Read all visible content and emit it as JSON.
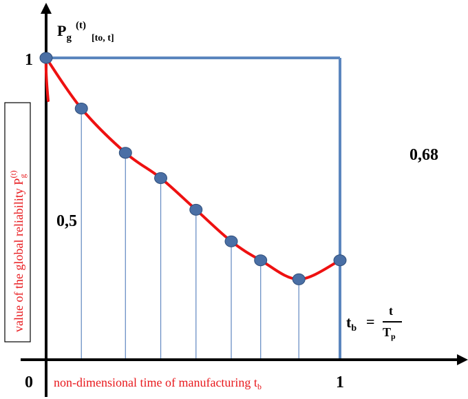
{
  "chart_data": {
    "type": "line",
    "series": [
      {
        "x": [
          0,
          0.12,
          0.27,
          0.39,
          0.51,
          0.63,
          0.73,
          0.86,
          1.0
        ],
        "values": [
          1.0,
          0.92,
          0.85,
          0.81,
          0.76,
          0.71,
          0.68,
          0.65,
          0.68
        ],
        "color": "#ee1111"
      }
    ],
    "markers_color": "#4a6fa5",
    "box_color": "#5b86be",
    "droplines_color": "#6a8fc4",
    "axis_color": "#000000",
    "xlim": [
      0,
      1
    ],
    "ylim": [
      0,
      1
    ],
    "x_ticks": [
      {
        "value": 0,
        "label": "0"
      },
      {
        "value": 1,
        "label": "1"
      }
    ],
    "y_ticks": [
      {
        "value": 1,
        "label": "1"
      },
      {
        "value": 0.5,
        "label": "0,5"
      }
    ],
    "title_main": "P",
    "title_sub": "g",
    "title_sup": "(t)",
    "title_interval": "[to, t]",
    "ylabel_text": "value of the global reliability P",
    "ylabel_sub": "g",
    "ylabel_sup": "(t)",
    "xlabel_text": "non-dimensional time of manufacturing t",
    "xlabel_sub": "b",
    "annotation_value": "0,68",
    "formula_lhs": "t",
    "formula_lhs_sub": "b",
    "formula_eq": "=",
    "formula_num": "t",
    "formula_den": "T",
    "formula_den_sub": "p"
  }
}
